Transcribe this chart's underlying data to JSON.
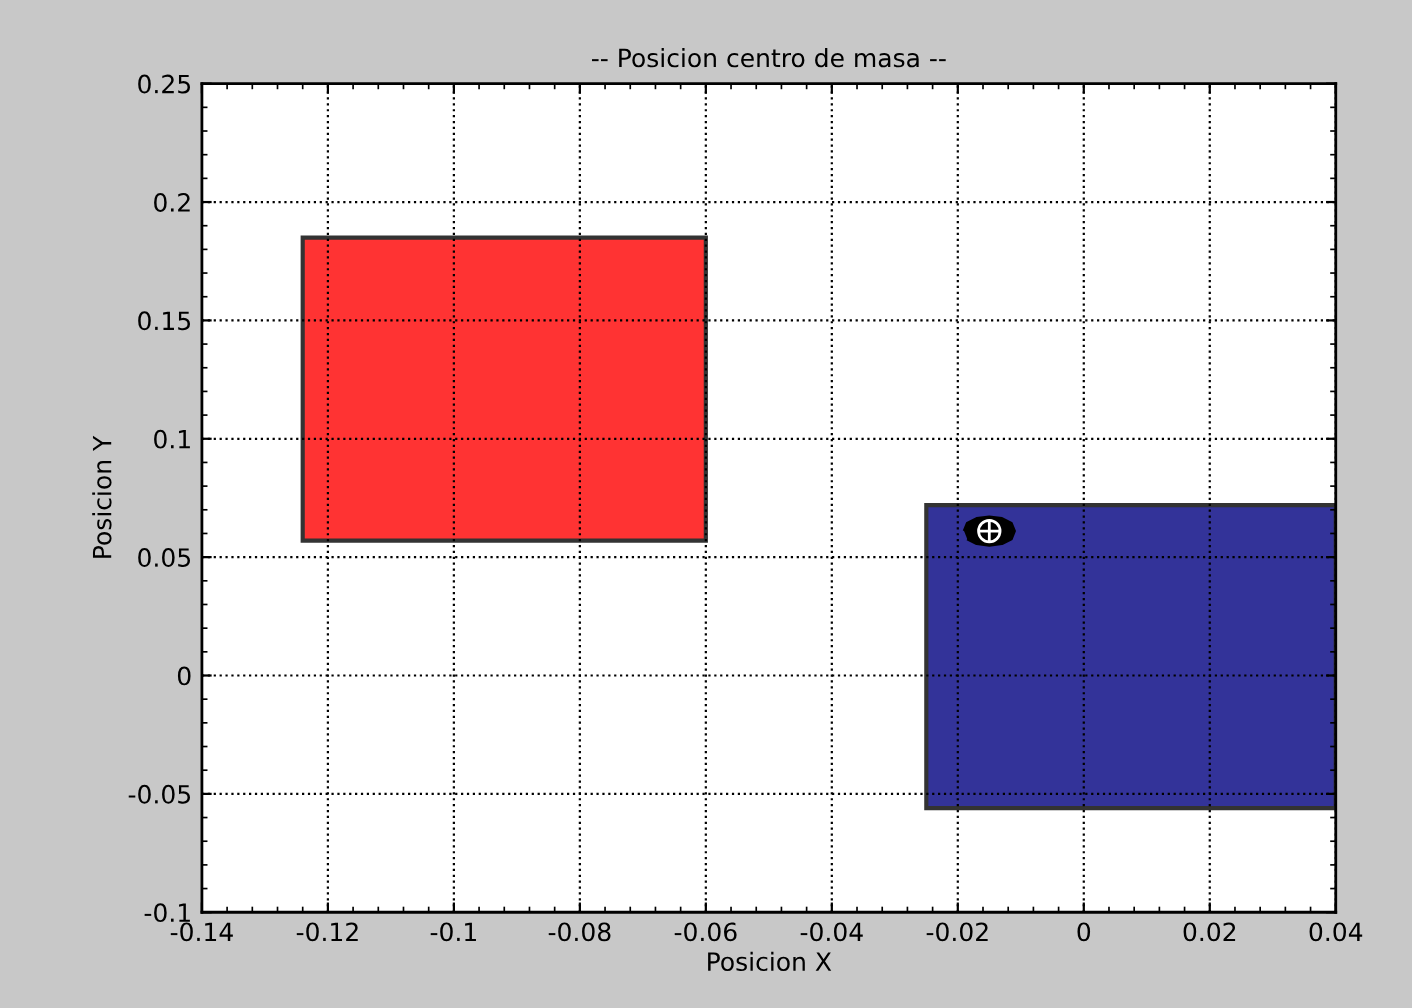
{
  "chart_data": {
    "type": "area",
    "title": "-- Posicion centro de masa --",
    "xlabel": "Posicion X",
    "ylabel": "Posicion Y",
    "series": [
      {
        "color": "#ff3333",
        "x": [
          -0.124,
          -0.124,
          -0.06,
          -0.06
        ],
        "values": [
          0.057,
          0.185,
          0.185,
          0.057
        ]
      },
      {
        "color": "#333399",
        "x": [
          -0.025,
          -0.025,
          0.04,
          0.04
        ],
        "values": [
          -0.056,
          0.072,
          0.072,
          -0.056
        ]
      },
      {
        "type": "scatter",
        "color": "#000000",
        "x": [
          -0.015
        ],
        "values": [
          0.061
        ]
      }
    ],
    "xlim": [
      -0.14,
      0.04
    ],
    "xticks": [
      -0.14,
      -0.12,
      -0.1,
      -0.08,
      -0.06,
      -0.04,
      -0.02,
      0,
      0.02,
      0.04
    ],
    "ylim": [
      -0.1,
      0.25
    ],
    "yticks": [
      -0.1,
      -0.05,
      0,
      0.05,
      0.1,
      0.15,
      0.2,
      0.25
    ],
    "grid": true,
    "line_style": "dotted"
  }
}
